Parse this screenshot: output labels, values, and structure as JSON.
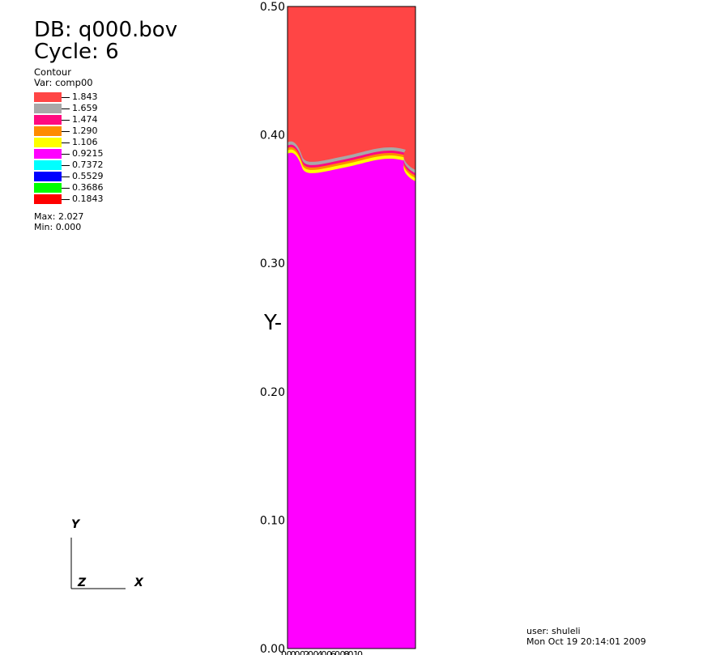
{
  "header": {
    "db_line": "DB: q000.bov",
    "cycle_line": "Cycle: 6"
  },
  "legend": {
    "plot_type": "Contour",
    "var_line": "Var: comp00",
    "entries": [
      {
        "label": "1.843",
        "color": "#ff4545"
      },
      {
        "label": "1.659",
        "color": "#a8a8a8"
      },
      {
        "label": "1.474",
        "color": "#ff0a80"
      },
      {
        "label": "1.290",
        "color": "#ff8c00"
      },
      {
        "label": "1.106",
        "color": "#ffff00"
      },
      {
        "label": "0.9215",
        "color": "#ff00ff"
      },
      {
        "label": "0.7372",
        "color": "#00ffff"
      },
      {
        "label": "0.5529",
        "color": "#0000ff"
      },
      {
        "label": "0.3686",
        "color": "#00ff00"
      },
      {
        "label": "0.1843",
        "color": "#ff0000"
      }
    ],
    "max_line": "Max: 2.027",
    "min_line": "Min: 0.000"
  },
  "chart_data": {
    "type": "heatmap",
    "variable": "comp00",
    "ylabel": "Y-",
    "ylim": [
      0,
      0.5
    ],
    "y_ticks": [
      "0.00",
      "0.10",
      "0.20",
      "0.30",
      "0.40",
      "0.50"
    ],
    "x_tick_labels_overlapping": "0.000.020.040.060.080.10",
    "upper_region_value": 1.843,
    "lower_region_value": 0.9215,
    "interface_y_range": [
      0.36,
      0.39
    ]
  },
  "triad": {
    "y": "Y",
    "z": "Z",
    "x": "X"
  },
  "footer": {
    "user_line": "user: shuleli",
    "date_line": "Mon Oct 19 20:14:01 2009"
  }
}
